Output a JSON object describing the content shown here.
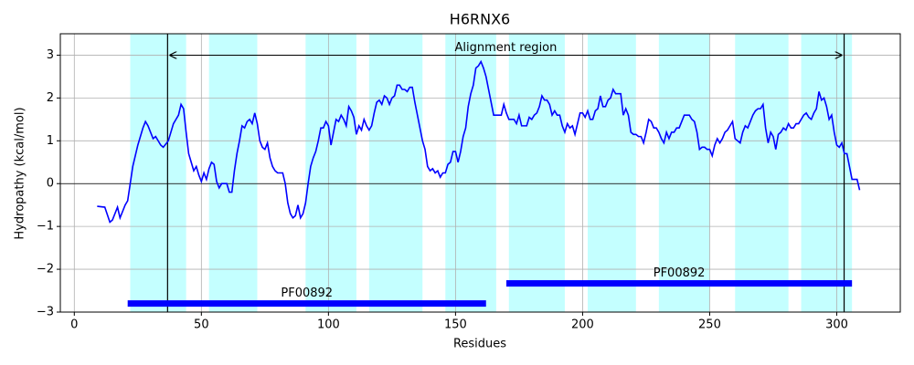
{
  "chart_data": {
    "type": "line",
    "title": "H6RNX6",
    "xlabel": "Residues",
    "ylabel": "Hydropathy (kcal/mol)",
    "x": [
      9,
      12,
      14,
      15,
      17,
      18,
      20,
      21,
      23,
      25,
      27,
      28,
      29,
      31,
      32,
      34,
      35,
      37,
      39,
      40,
      41,
      42,
      43,
      44,
      45,
      46,
      47,
      48,
      49,
      50,
      51,
      52,
      53,
      54,
      55,
      56,
      57,
      58,
      60,
      61,
      62,
      63,
      64,
      65,
      66,
      67,
      68,
      69,
      70,
      71,
      72,
      73,
      74,
      75,
      76,
      77,
      78,
      79,
      80,
      82,
      83,
      84,
      85,
      86,
      87,
      88,
      89,
      90,
      91,
      92,
      93,
      94,
      95,
      96,
      97,
      98,
      99,
      100,
      101,
      102,
      103,
      104,
      105,
      106,
      107,
      108,
      109,
      110,
      111,
      112,
      113,
      114,
      115,
      116,
      117,
      118,
      119,
      120,
      121,
      122,
      123,
      124,
      125,
      126,
      127,
      128,
      129,
      130,
      131,
      132,
      133,
      134,
      135,
      136,
      137,
      138,
      139,
      140,
      141,
      142,
      143,
      144,
      145,
      146,
      147,
      148,
      149,
      150,
      151,
      152,
      153,
      154,
      155,
      156,
      157,
      158,
      159,
      160,
      161,
      162,
      163,
      164,
      165,
      166,
      167,
      168,
      169,
      170,
      171,
      172,
      173,
      174,
      175,
      176,
      177,
      178,
      179,
      180,
      181,
      182,
      183,
      184,
      185,
      186,
      187,
      188,
      189,
      190,
      191,
      192,
      193,
      194,
      195,
      196,
      197,
      198,
      199,
      200,
      201,
      202,
      203,
      204,
      205,
      206,
      207,
      208,
      209,
      210,
      211,
      212,
      213,
      214,
      215,
      216,
      217,
      218,
      219,
      220,
      221,
      222,
      223,
      224,
      225,
      226,
      227,
      228,
      229,
      230,
      231,
      232,
      233,
      234,
      235,
      236,
      237,
      238,
      239,
      240,
      241,
      242,
      243,
      244,
      245,
      246,
      247,
      248,
      249,
      250,
      251,
      252,
      253,
      254,
      255,
      256,
      257,
      258,
      259,
      260,
      261,
      262,
      263,
      264,
      265,
      266,
      267,
      268,
      269,
      270,
      271,
      272,
      273,
      274,
      275,
      276,
      277,
      278,
      279,
      280,
      281,
      282,
      283,
      284,
      285,
      286,
      287,
      288,
      289,
      290,
      291,
      292,
      293,
      294,
      295,
      296,
      297,
      298,
      299,
      300,
      301,
      302,
      303,
      304,
      305,
      306,
      307,
      308,
      309
    ],
    "series": [
      {
        "color": "#0000ff",
        "values": [
          -0.53,
          -0.55,
          -0.9,
          -0.85,
          -0.55,
          -0.8,
          -0.5,
          -0.4,
          0.4,
          0.9,
          1.3,
          1.45,
          1.35,
          1.05,
          1.1,
          0.9,
          0.85,
          1.0,
          1.4,
          1.5,
          1.6,
          1.85,
          1.75,
          1.2,
          0.7,
          0.5,
          0.3,
          0.4,
          0.2,
          0.05,
          0.25,
          0.1,
          0.35,
          0.5,
          0.45,
          0.05,
          -0.1,
          0,
          0,
          -0.2,
          -0.2,
          0.3,
          0.7,
          1.0,
          1.35,
          1.3,
          1.45,
          1.5,
          1.4,
          1.65,
          1.4,
          1.0,
          0.85,
          0.8,
          0.95,
          0.6,
          0.4,
          0.3,
          0.25,
          0.25,
          0,
          -0.45,
          -0.7,
          -0.8,
          -0.75,
          -0.5,
          -0.8,
          -0.7,
          -0.45,
          0,
          0.4,
          0.6,
          0.75,
          1.0,
          1.3,
          1.3,
          1.45,
          1.35,
          0.9,
          1.2,
          1.5,
          1.45,
          1.6,
          1.5,
          1.35,
          1.8,
          1.7,
          1.55,
          1.15,
          1.35,
          1.25,
          1.5,
          1.35,
          1.25,
          1.35,
          1.65,
          1.9,
          1.95,
          1.85,
          2.05,
          2.0,
          1.85,
          2.0,
          2.05,
          2.3,
          2.3,
          2.2,
          2.2,
          2.15,
          2.25,
          2.25,
          1.9,
          1.6,
          1.3,
          1.0,
          0.8,
          0.4,
          0.3,
          0.35,
          0.25,
          0.3,
          0.15,
          0.25,
          0.25,
          0.45,
          0.5,
          0.75,
          0.75,
          0.5,
          0.75,
          1.1,
          1.3,
          1.8,
          2.1,
          2.3,
          2.7,
          2.75,
          2.85,
          2.7,
          2.5,
          2.2,
          1.9,
          1.6,
          1.6,
          1.6,
          1.6,
          1.85,
          1.65,
          1.5,
          1.5,
          1.5,
          1.4,
          1.6,
          1.35,
          1.35,
          1.35,
          1.55,
          1.5,
          1.6,
          1.65,
          1.8,
          2.05,
          1.95,
          1.95,
          1.85,
          1.6,
          1.7,
          1.6,
          1.6,
          1.35,
          1.2,
          1.4,
          1.3,
          1.35,
          1.15,
          1.4,
          1.65,
          1.65,
          1.55,
          1.7,
          1.5,
          1.5,
          1.7,
          1.75,
          2.05,
          1.8,
          1.8,
          1.95,
          2.0,
          2.2,
          2.1,
          2.1,
          2.1,
          1.6,
          1.75,
          1.6,
          1.2,
          1.15,
          1.15,
          1.1,
          1.1,
          0.95,
          1.2,
          1.5,
          1.45,
          1.3,
          1.3,
          1.2,
          1.05,
          0.95,
          1.2,
          1.05,
          1.2,
          1.2,
          1.3,
          1.3,
          1.45,
          1.6,
          1.6,
          1.6,
          1.5,
          1.45,
          1.2,
          0.8,
          0.85,
          0.85,
          0.8,
          0.8,
          0.65,
          0.9,
          1.05,
          0.95,
          1.05,
          1.2,
          1.25,
          1.35,
          1.45,
          1.05,
          1.0,
          0.95,
          1.2,
          1.35,
          1.3,
          1.45,
          1.6,
          1.7,
          1.75,
          1.75,
          1.85,
          1.3,
          0.95,
          1.2,
          1.1,
          0.8,
          1.15,
          1.2,
          1.3,
          1.25,
          1.4,
          1.3,
          1.3,
          1.4,
          1.4,
          1.5,
          1.6,
          1.65,
          1.55,
          1.5,
          1.65,
          1.75,
          2.15,
          1.95,
          2.0,
          1.8,
          1.5,
          1.6,
          1.2,
          0.9,
          0.85,
          0.95,
          0.7,
          0.7,
          0.4,
          0.1,
          0.1,
          0.1,
          -0.15
        ]
      }
    ],
    "xlim": [
      -5.5,
      325
    ],
    "ylim": [
      -3,
      3.5
    ],
    "xticks": [
      0,
      50,
      100,
      150,
      200,
      250,
      300
    ],
    "yticks": [
      {
        "value": -3,
        "label": "−3"
      },
      {
        "value": -2,
        "label": "−2"
      },
      {
        "value": -1,
        "label": "−1"
      },
      0,
      1,
      2,
      3
    ],
    "grid": true,
    "bands": {
      "color": "#c4ffff",
      "ranges": [
        [
          22,
          44
        ],
        [
          53,
          72
        ],
        [
          91,
          111
        ],
        [
          116,
          137
        ],
        [
          146,
          166
        ],
        [
          171,
          193
        ],
        [
          202,
          221
        ],
        [
          230,
          250
        ],
        [
          260,
          281
        ],
        [
          286,
          306
        ]
      ]
    },
    "vlines": [
      36.7,
      302.9
    ],
    "hline": 0,
    "annotation": {
      "text": "Alignment region",
      "y": 3
    },
    "domains": [
      {
        "label": "PF00892",
        "start": 21,
        "end": 162,
        "y": -2.8,
        "color": "#0000ff"
      },
      {
        "label": "PF00892",
        "start": 170,
        "end": 306,
        "y": -2.33,
        "color": "#0000ff"
      }
    ]
  }
}
